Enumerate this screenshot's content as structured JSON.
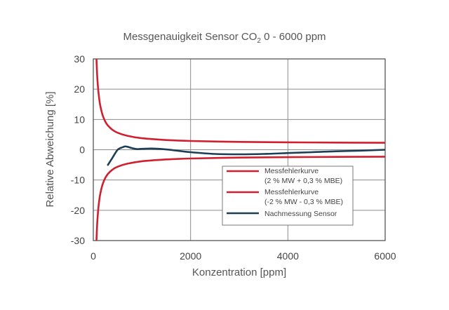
{
  "chart_data": {
    "type": "line",
    "title": "Messgenauigkeit Sensor CO",
    "title_sub": "2",
    "title_suffix": " 0 - 6000 ppm",
    "xlabel": "Konzentration [ppm]",
    "ylabel": "Relative Abweichung [%]",
    "xlim": [
      0,
      6000
    ],
    "ylim": [
      -30,
      30
    ],
    "xticks": [
      "0",
      "2000",
      "4000",
      "6000"
    ],
    "yticks": [
      "30",
      "20",
      "10",
      "0",
      "-10",
      "-20",
      "-30"
    ],
    "grid": true,
    "legend_position": "lower-right",
    "series": [
      {
        "name": "Messfehlerkurve",
        "name_line2": "(2 % MW + 0,3 % MBE)",
        "color": "#d0202f",
        "x": [
          50,
          60,
          80,
          100,
          130,
          160,
          200,
          250,
          300,
          400,
          500,
          700,
          1000,
          1500,
          2000,
          3000,
          4000,
          5000,
          6000
        ],
        "y": [
          38,
          32,
          24.5,
          20,
          15.8,
          13.3,
          11,
          9.2,
          8,
          6.5,
          5.6,
          4.6,
          3.8,
          3.2,
          2.9,
          2.6,
          2.45,
          2.36,
          2.3
        ]
      },
      {
        "name": "Messfehlerkurve",
        "name_line2": "(-2 % MW - 0,3 % MBE)",
        "color": "#d0202f",
        "x": [
          50,
          60,
          80,
          100,
          130,
          160,
          200,
          250,
          300,
          400,
          500,
          700,
          1000,
          1500,
          2000,
          3000,
          4000,
          5000,
          6000
        ],
        "y": [
          -38,
          -32,
          -24.5,
          -20,
          -15.8,
          -13.3,
          -11,
          -9.2,
          -8,
          -6.5,
          -5.6,
          -4.6,
          -3.8,
          -3.2,
          -2.9,
          -2.6,
          -2.45,
          -2.36,
          -2.3
        ]
      },
      {
        "name": "Nachmessung Sensor",
        "name_line2": "",
        "color": "#1c3f57",
        "x": [
          300,
          400,
          500,
          600,
          650,
          700,
          800,
          900,
          1000,
          1200,
          1500,
          2000,
          2500,
          3000,
          3500,
          4000,
          4500,
          5000,
          5500,
          6000
        ],
        "y": [
          -5,
          -2.5,
          0,
          0.8,
          1.1,
          1.0,
          0.5,
          0.2,
          0.3,
          0.4,
          0.1,
          -0.8,
          -1.4,
          -1.5,
          -1.4,
          -1.1,
          -0.8,
          -0.5,
          -0.3,
          0
        ]
      }
    ]
  }
}
